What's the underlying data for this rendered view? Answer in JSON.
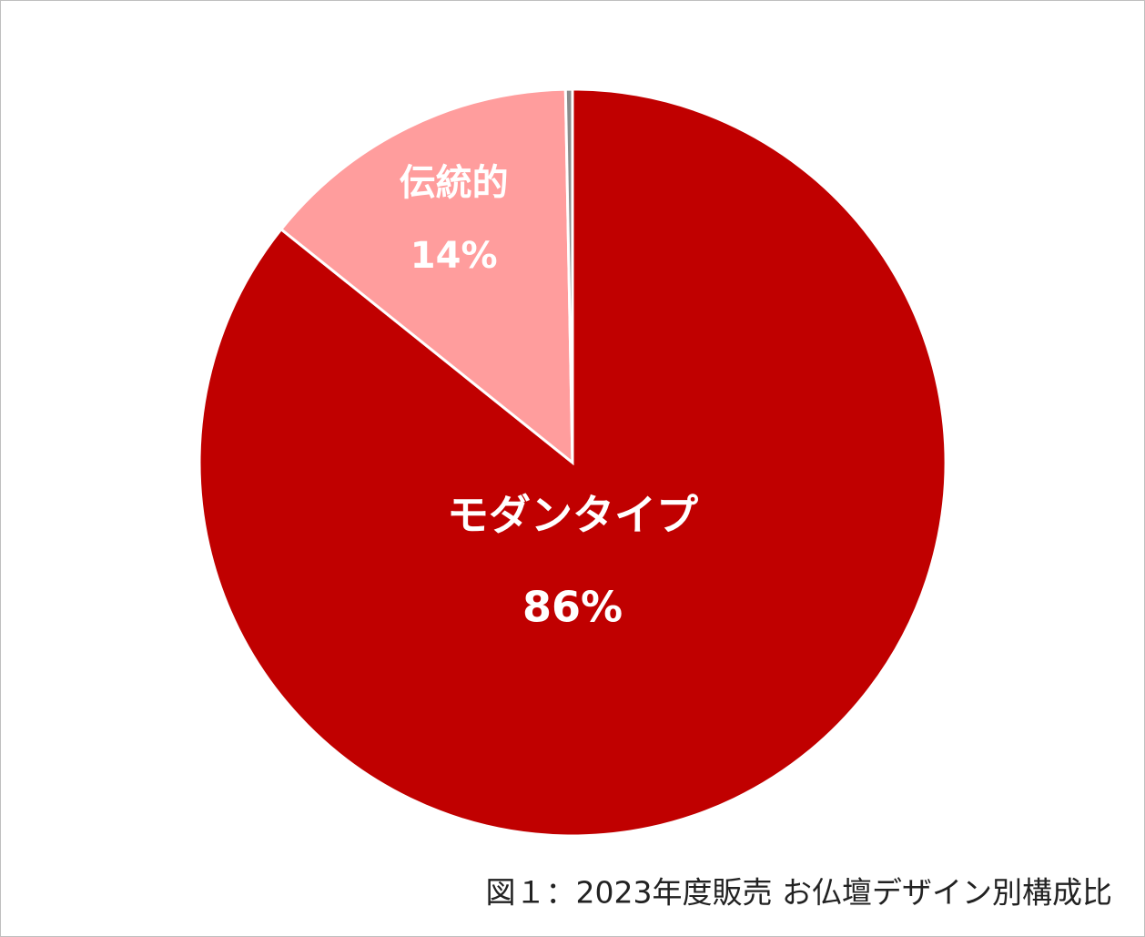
{
  "chart_data": {
    "type": "pie",
    "title": "図１：2023年度販売 お仏壇デザイン別構成比",
    "categories": [
      "モダンタイプ",
      "伝統的",
      null
    ],
    "values": [
      86,
      14,
      0.3
    ],
    "value_labels": [
      "86%",
      "14%",
      null
    ],
    "colors": [
      "#c00000",
      "#ff9d9d",
      "#8c8c8c"
    ]
  }
}
